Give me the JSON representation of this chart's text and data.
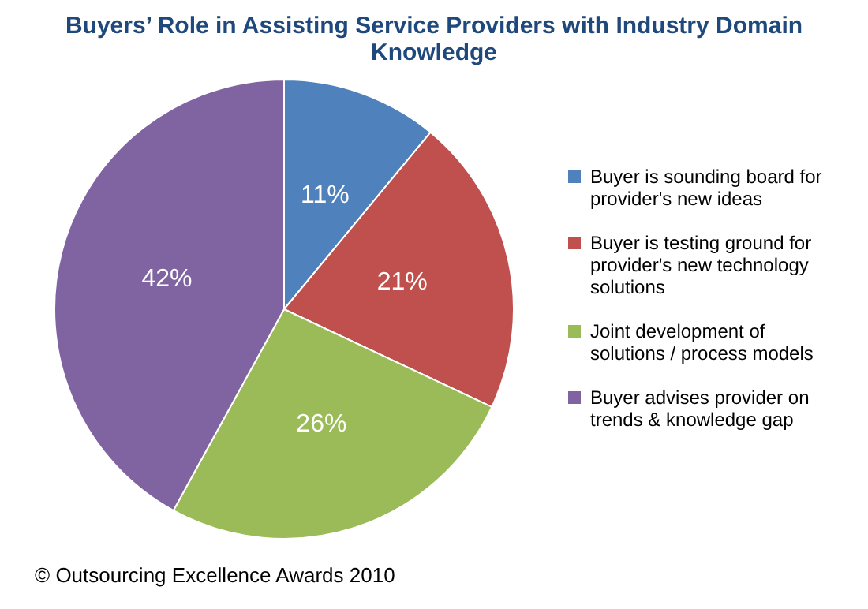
{
  "chart_data": {
    "type": "pie",
    "title": "Buyers’ Role in Assisting Service Providers with Industry Domain Knowledge",
    "categories": [
      "Buyer is sounding board for provider's new ideas",
      "Buyer is testing ground for provider's new technology solutions",
      "Joint development of solutions / process models",
      "Buyer advises provider on trends & knowledge gap"
    ],
    "values": [
      11,
      21,
      26,
      42
    ],
    "colors": [
      "#4f81bd",
      "#c0504d",
      "#9bbb59",
      "#8064a2"
    ],
    "value_labels": [
      "11%",
      "21%",
      "26%",
      "42%"
    ],
    "legend": "right",
    "annotations": [
      "© Outsourcing Excellence Awards 2010"
    ]
  }
}
